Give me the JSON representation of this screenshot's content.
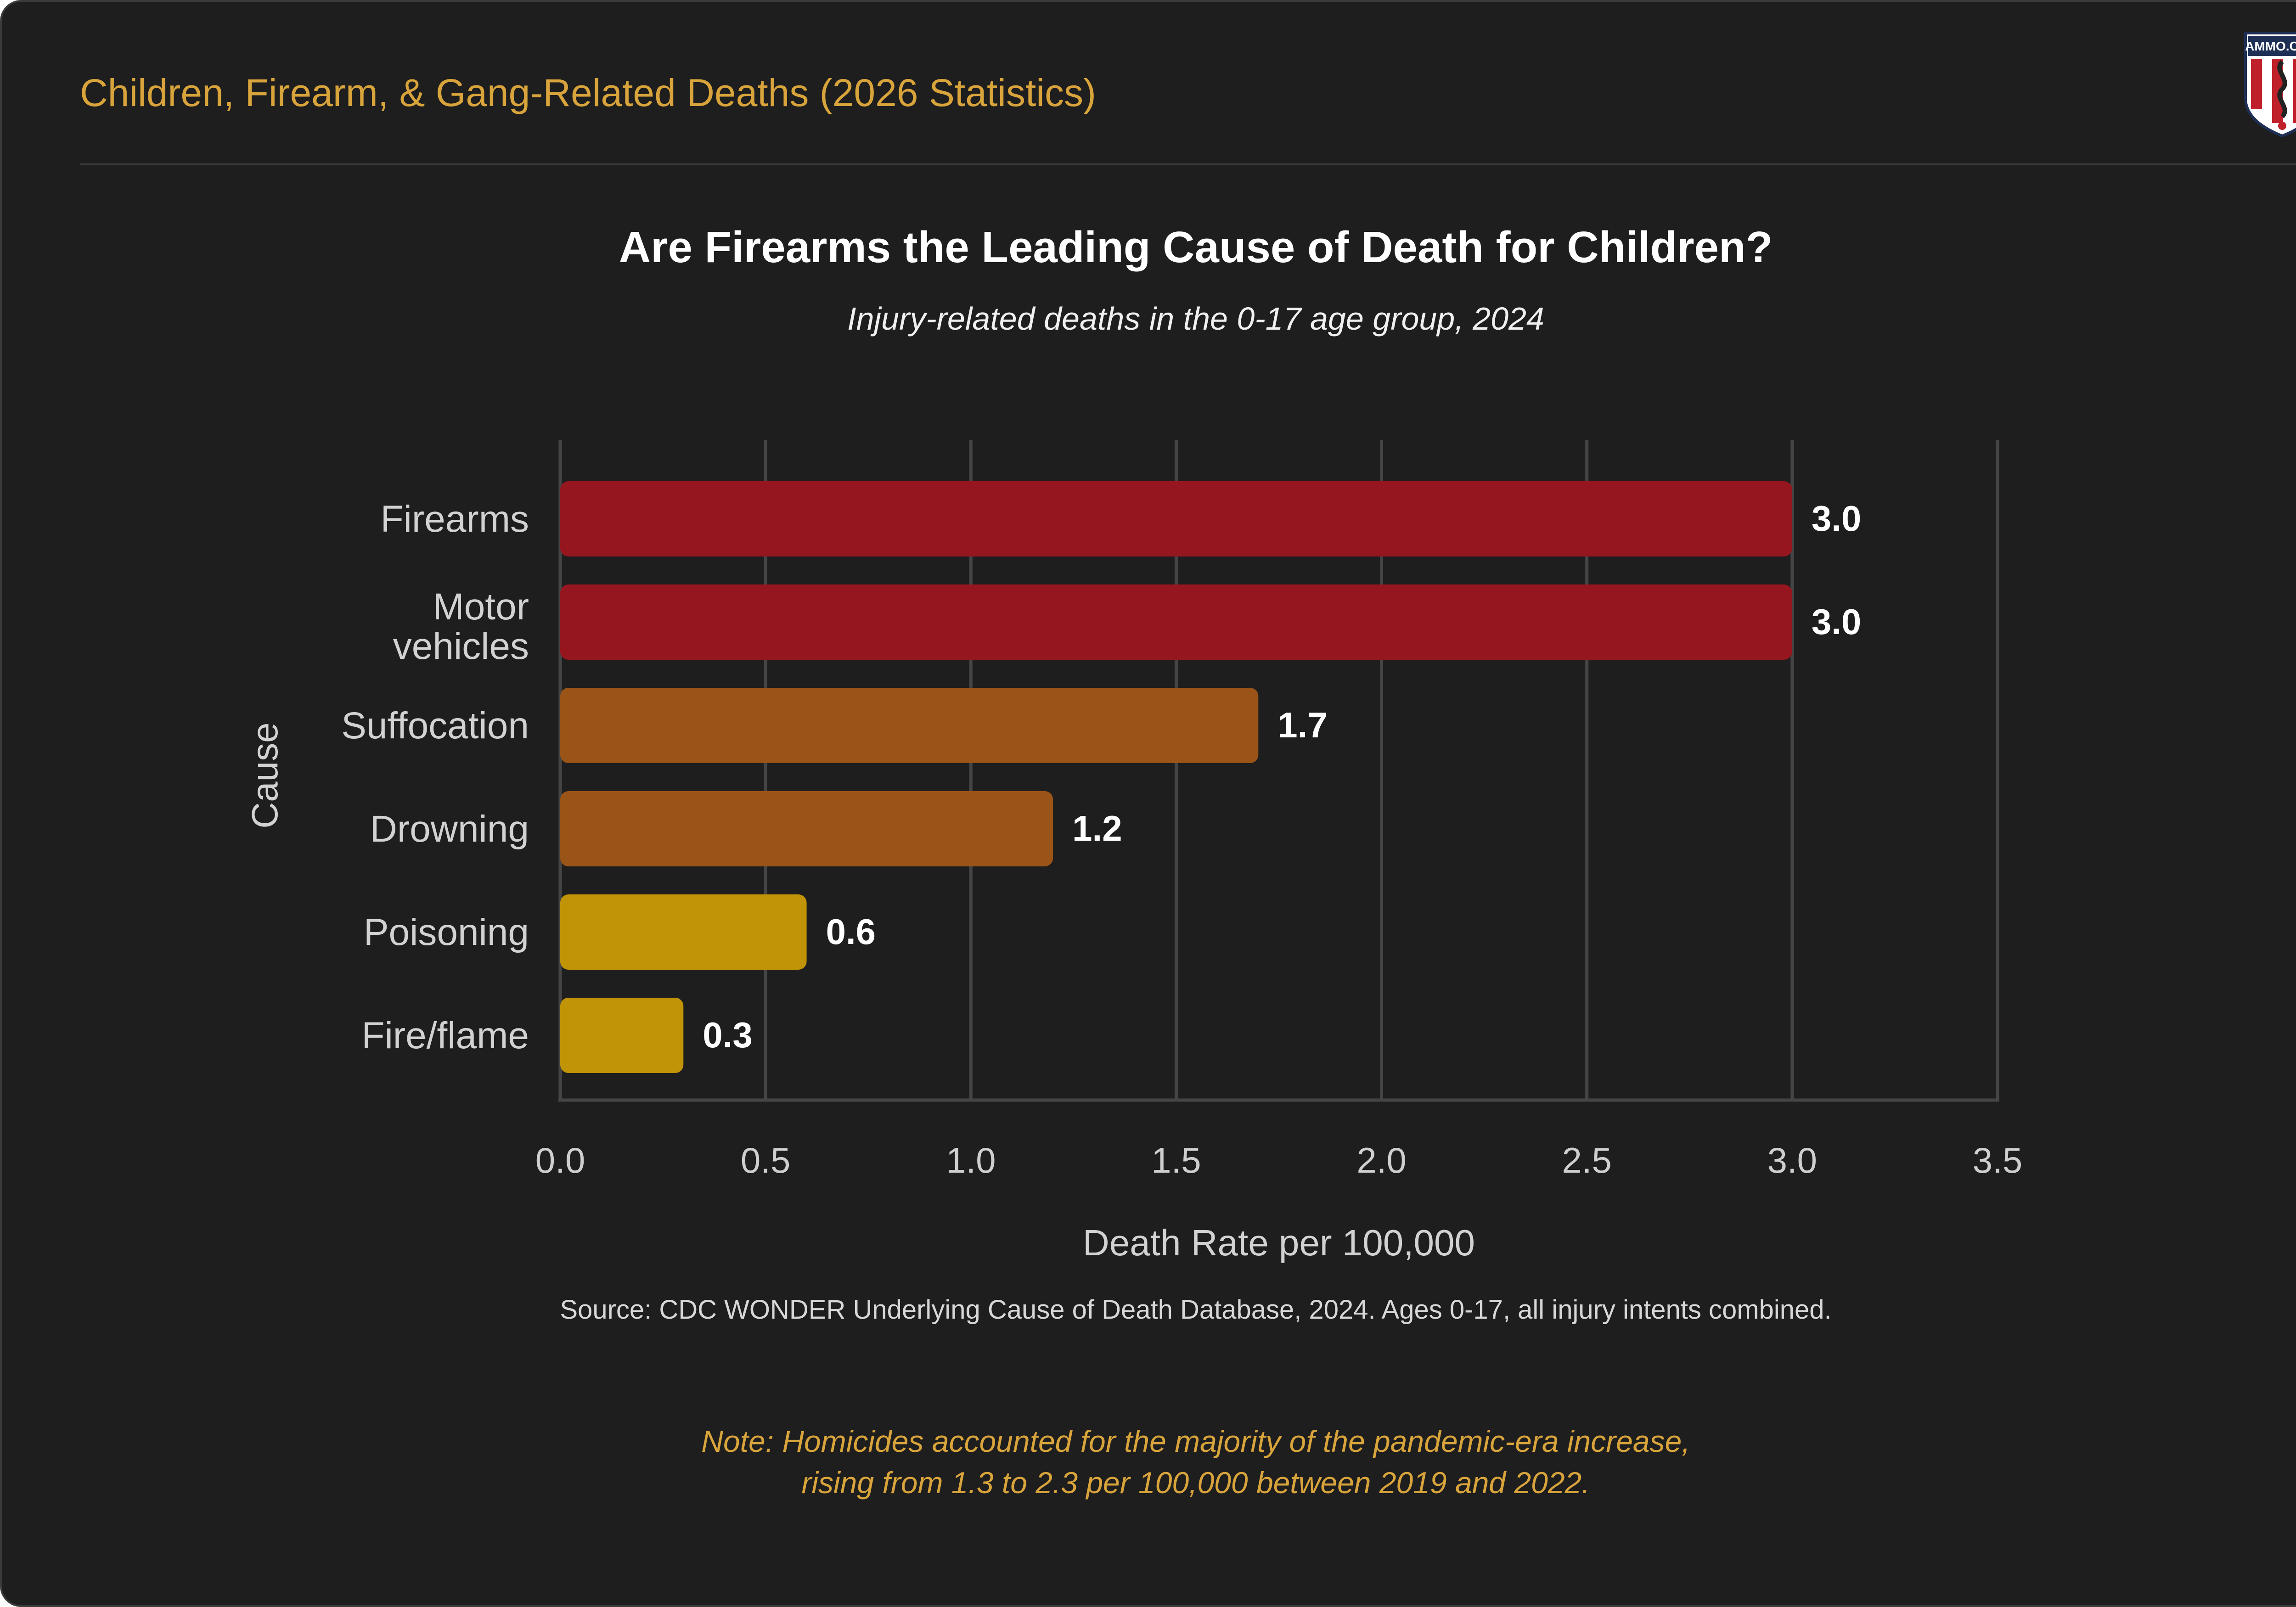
{
  "header": {
    "title": "Children, Firearm, & Gang-Related Deaths (2026 Statistics)",
    "logo_text": "AMMO.COM"
  },
  "chart_data": {
    "type": "bar",
    "orientation": "horizontal",
    "title": "Are Firearms the Leading Cause of Death for Children?",
    "subtitle": "Injury-related deaths in the 0-17 age group, 2024",
    "categories": [
      "Firearms",
      "Motor vehicles",
      "Suffocation",
      "Drowning",
      "Poisoning",
      "Fire/flame"
    ],
    "values": [
      3.0,
      3.0,
      1.7,
      1.2,
      0.6,
      0.3
    ],
    "value_labels": [
      "3.0",
      "3.0",
      "1.7",
      "1.2",
      "0.6",
      "0.3"
    ],
    "bar_colors": [
      "#96161f",
      "#96161f",
      "#9a5418",
      "#9a5418",
      "#c19407",
      "#c19407"
    ],
    "xlabel": "Death Rate per 100,000",
    "ylabel": "Cause",
    "xlim": [
      0,
      3.5
    ],
    "xticks": [
      "0.0",
      "0.5",
      "1.0",
      "1.5",
      "2.0",
      "2.5",
      "3.0",
      "3.5"
    ],
    "grid": "vertical",
    "legend": "none"
  },
  "source": "Source: CDC WONDER Underlying Cause of Death Database, 2024. Ages 0-17, all injury intents combined.",
  "note": {
    "line1": "Note: Homicides accounted for the majority of the pandemic-era increase,",
    "line2": "rising from 1.3 to 2.3 per 100,000 between 2019 and 2022."
  },
  "colors": {
    "background": "#1e1e1e",
    "accent": "#d8a43b",
    "grid": "#454545"
  }
}
